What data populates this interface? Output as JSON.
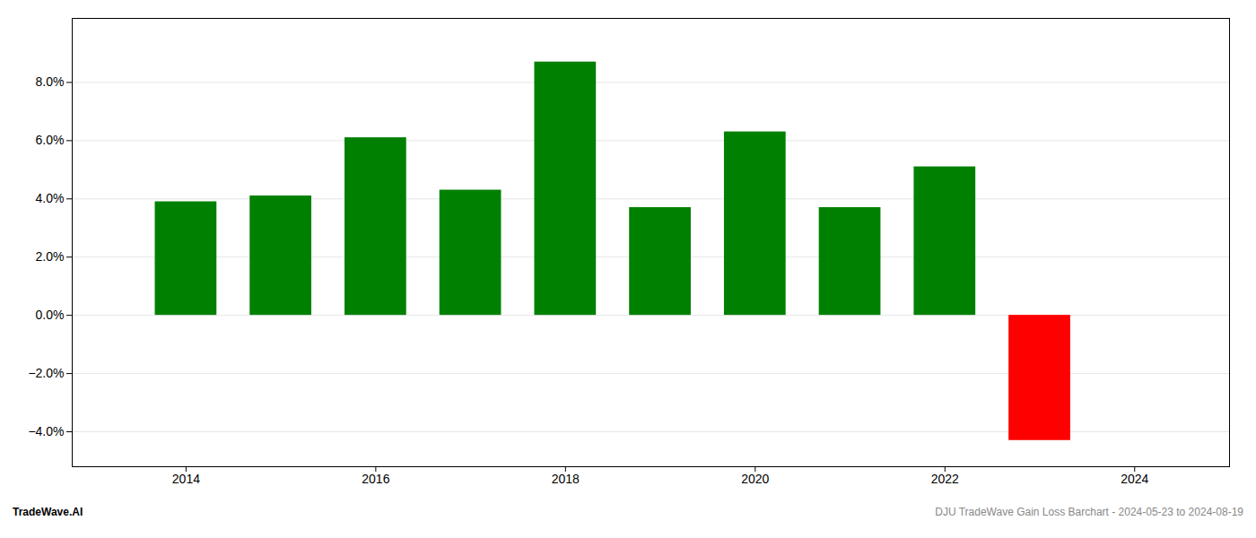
{
  "chart_data": {
    "type": "bar",
    "x": [
      2014,
      2015,
      2016,
      2017,
      2018,
      2019,
      2020,
      2021,
      2022,
      2023
    ],
    "values": [
      0.039,
      0.041,
      0.061,
      0.043,
      0.087,
      0.037,
      0.063,
      0.037,
      0.051,
      -0.043
    ],
    "colors": [
      "#008000",
      "#008000",
      "#008000",
      "#008000",
      "#008000",
      "#008000",
      "#008000",
      "#008000",
      "#008000",
      "#ff0000"
    ],
    "xlim": [
      2012.8,
      2025.0
    ],
    "xticks": [
      2014,
      2016,
      2018,
      2020,
      2022,
      2024
    ],
    "ylim": [
      -0.052,
      0.102
    ],
    "yticks": [
      {
        "value": -0.04,
        "label": "−4.0%"
      },
      {
        "value": -0.02,
        "label": "−2.0%"
      },
      {
        "value": 0.0,
        "label": "0.0%"
      },
      {
        "value": 0.02,
        "label": "2.0%"
      },
      {
        "value": 0.04,
        "label": "4.0%"
      },
      {
        "value": 0.06,
        "label": "6.0%"
      },
      {
        "value": 0.08,
        "label": "8.0%"
      }
    ],
    "grid": true,
    "annotations": [
      {
        "text": "TradeWave.AI"
      },
      {
        "text": "DJU TradeWave Gain Loss Barchart - 2024-05-23 to 2024-08-19"
      }
    ]
  }
}
